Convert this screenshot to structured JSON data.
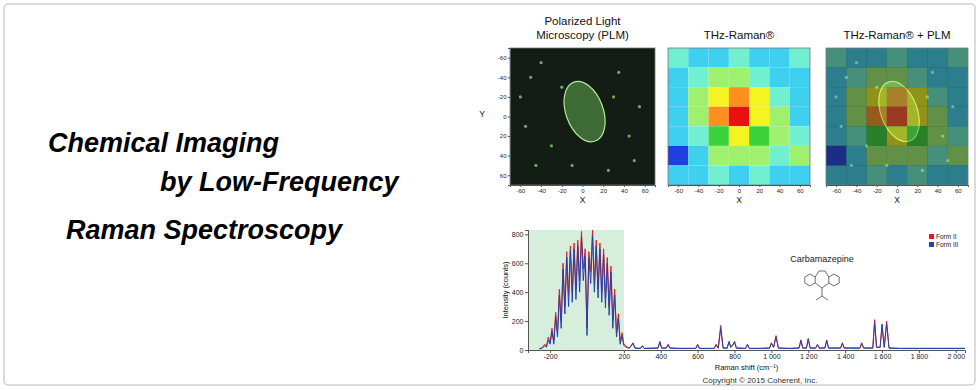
{
  "banner": {
    "title_lines": [
      "Chemical Imaging",
      "by Low-Frequency",
      "Raman Spectroscopy"
    ],
    "copyright": "Copyright © 2015 Coherent, Inc."
  },
  "chart_data": [
    {
      "type": "image",
      "title": "Polarized Light\nMicroscopy (PLM)",
      "x_label": "X",
      "y_label": "Y",
      "xlim": [
        -70,
        70
      ],
      "ylim": [
        -70,
        70
      ],
      "xticks": [
        -60,
        -40,
        -20,
        0,
        20,
        40,
        60
      ],
      "yticks": [
        -60,
        -40,
        -20,
        0,
        20,
        40,
        60
      ]
    },
    {
      "type": "heatmap",
      "title": "THz-Raman®",
      "x_label": "X",
      "xlim": [
        -70,
        70
      ],
      "ylim": [
        -70,
        70
      ],
      "xticks": [
        -60,
        -40,
        -20,
        0,
        20,
        40,
        60
      ],
      "tick_labels": "x",
      "x": [
        -60,
        -40,
        -20,
        0,
        20,
        40,
        60
      ],
      "y": [
        -60,
        -40,
        -20,
        0,
        20,
        40,
        60
      ],
      "cells": [
        [
          3,
          2,
          2,
          3,
          2,
          2,
          3
        ],
        [
          2,
          3,
          4,
          4,
          3,
          2,
          2
        ],
        [
          2,
          4,
          6,
          7,
          6,
          3,
          2
        ],
        [
          2,
          4,
          7,
          9,
          6,
          4,
          2
        ],
        [
          2,
          3,
          5,
          6,
          5,
          4,
          3
        ],
        [
          0,
          2,
          4,
          4,
          4,
          3,
          4
        ],
        [
          2,
          2,
          3,
          2,
          3,
          2,
          2
        ]
      ],
      "zlim": [
        0,
        9
      ]
    },
    {
      "type": "heatmap_overlay",
      "title": "THz-Raman® + PLM",
      "x_label": "X",
      "xlim": [
        -70,
        70
      ],
      "ylim": [
        -70,
        70
      ],
      "xticks": [
        -60,
        -40,
        -20,
        0,
        20,
        40,
        60
      ],
      "tick_labels": "x",
      "x": [
        -60,
        -40,
        -20,
        0,
        20,
        40,
        60
      ],
      "y": [
        -60,
        -40,
        -20,
        0,
        20,
        40,
        60
      ],
      "cells": [
        [
          3,
          2,
          2,
          3,
          2,
          2,
          3
        ],
        [
          2,
          3,
          4,
          4,
          3,
          2,
          2
        ],
        [
          2,
          4,
          6,
          7,
          6,
          3,
          2
        ],
        [
          2,
          4,
          7,
          9,
          6,
          4,
          2
        ],
        [
          2,
          3,
          5,
          6,
          5,
          4,
          3
        ],
        [
          0,
          2,
          4,
          4,
          4,
          3,
          4
        ],
        [
          2,
          2,
          3,
          2,
          3,
          2,
          2
        ]
      ],
      "zlim": [
        0,
        9
      ]
    },
    {
      "type": "line",
      "x_label": "Raman shift (cm⁻¹)",
      "y_label": "Intensity (counts)",
      "xlim": [
        -320,
        2050
      ],
      "ylim": [
        0,
        830
      ],
      "xticks": [
        -200,
        200,
        400,
        600,
        800,
        {
          "value": 1000,
          "label": "1 000"
        },
        {
          "value": 1200,
          "label": "1 200"
        },
        {
          "value": 1400,
          "label": "1 400"
        },
        {
          "value": 1600,
          "label": "1 600"
        },
        {
          "value": 1800,
          "label": "1 800"
        },
        {
          "value": 2000,
          "label": "2 000"
        }
      ],
      "yticks": [
        0,
        200,
        400,
        600,
        800
      ],
      "legend": "top-right",
      "annotation": "Carbamazepine",
      "shaded_range": [
        -320,
        200
      ],
      "x": [
        -260,
        -250,
        -240,
        -230,
        -220,
        -210,
        -200,
        -190,
        -180,
        -170,
        -160,
        -150,
        -140,
        -130,
        -120,
        -110,
        -100,
        -90,
        -80,
        -70,
        -60,
        -50,
        -40,
        -30,
        -20,
        -10,
        0,
        10,
        20,
        30,
        40,
        50,
        60,
        70,
        80,
        90,
        100,
        110,
        120,
        130,
        140,
        150,
        160,
        170,
        180,
        190,
        200,
        210,
        220,
        230,
        250,
        260,
        290,
        300,
        310,
        385,
        395,
        405,
        430,
        440,
        450,
        500,
        590,
        600,
        610,
        690,
        700,
        712,
        725,
        738,
        760,
        770,
        780,
        792,
        800,
        810,
        860,
        870,
        880,
        940,
        990,
        1000,
        1012,
        1025,
        1038,
        1100,
        1150,
        1160,
        1170,
        1190,
        1200,
        1210,
        1240,
        1250,
        1260,
        1290,
        1300,
        1310,
        1375,
        1385,
        1395,
        1480,
        1490,
        1500,
        1550,
        1560,
        1570,
        1590,
        1600,
        1612,
        1625,
        1638,
        1700,
        1800,
        1900,
        2000,
        2050
      ],
      "series": [
        {
          "name": "Form II",
          "color": "#e0201c",
          "values": [
            10,
            12,
            20,
            40,
            25,
            90,
            50,
            150,
            60,
            260,
            120,
            420,
            200,
            600,
            300,
            680,
            380,
            720,
            400,
            740,
            420,
            760,
            480,
            820,
            560,
            700,
            150,
            680,
            540,
            830,
            460,
            760,
            420,
            740,
            400,
            700,
            360,
            640,
            300,
            580,
            200,
            420,
            120,
            250,
            60,
            120,
            40,
            30,
            20,
            15,
            50,
            15,
            12,
            30,
            12,
            15,
            60,
            15,
            15,
            40,
            15,
            12,
            12,
            40,
            12,
            12,
            40,
            15,
            170,
            15,
            15,
            60,
            20,
            40,
            60,
            15,
            12,
            40,
            12,
            12,
            15,
            50,
            20,
            100,
            15,
            12,
            15,
            70,
            15,
            15,
            80,
            15,
            15,
            40,
            15,
            15,
            70,
            15,
            15,
            50,
            15,
            15,
            50,
            15,
            15,
            210,
            20,
            20,
            170,
            20,
            200,
            15,
            12,
            12,
            12,
            12,
            12
          ]
        },
        {
          "name": "Form III",
          "color": "#2a3fa8",
          "values": [
            8,
            10,
            15,
            30,
            20,
            70,
            40,
            130,
            40,
            230,
            90,
            380,
            150,
            560,
            250,
            640,
            300,
            690,
            330,
            700,
            350,
            720,
            400,
            780,
            480,
            650,
            100,
            640,
            460,
            790,
            400,
            720,
            360,
            700,
            330,
            660,
            290,
            600,
            240,
            540,
            150,
            380,
            90,
            220,
            40,
            100,
            30,
            20,
            15,
            12,
            45,
            12,
            10,
            28,
            10,
            12,
            55,
            12,
            12,
            35,
            12,
            10,
            10,
            35,
            10,
            10,
            35,
            12,
            150,
            12,
            12,
            55,
            18,
            35,
            55,
            12,
            10,
            35,
            10,
            10,
            12,
            45,
            18,
            90,
            12,
            10,
            12,
            65,
            12,
            12,
            75,
            12,
            12,
            35,
            12,
            12,
            65,
            12,
            12,
            45,
            12,
            12,
            45,
            12,
            12,
            190,
            18,
            18,
            180,
            18,
            180,
            12,
            10,
            10,
            10,
            10,
            10
          ]
        }
      ]
    }
  ]
}
